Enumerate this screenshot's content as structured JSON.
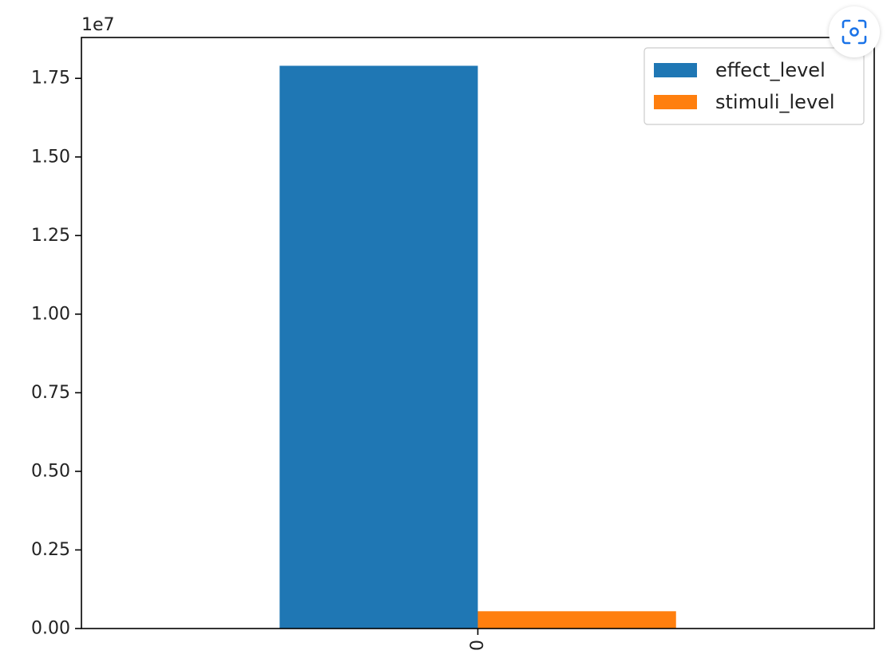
{
  "ui": {
    "lens_icon": "visual-search-icon",
    "lens_color": "#1a73e8"
  },
  "chart_data": {
    "type": "bar",
    "categories": [
      "0"
    ],
    "series": [
      {
        "name": "effect_level",
        "values": [
          17900000
        ],
        "color": "#1f77b4"
      },
      {
        "name": "stimuli_level",
        "values": [
          550000
        ],
        "color": "#ff7f0e"
      }
    ],
    "offset_text": "1e7",
    "scale": 10000000,
    "ylim": [
      0,
      18800000
    ],
    "yticks": [
      0,
      2500000,
      5000000,
      7500000,
      10000000,
      12500000,
      15000000,
      17500000
    ],
    "ytick_labels": [
      "0.00",
      "0.25",
      "0.50",
      "0.75",
      "1.00",
      "1.25",
      "1.50",
      "1.75"
    ],
    "xtick_rotation": 90,
    "title": "",
    "xlabel": "",
    "ylabel": "",
    "legend_location": "top-right",
    "grid": false
  }
}
